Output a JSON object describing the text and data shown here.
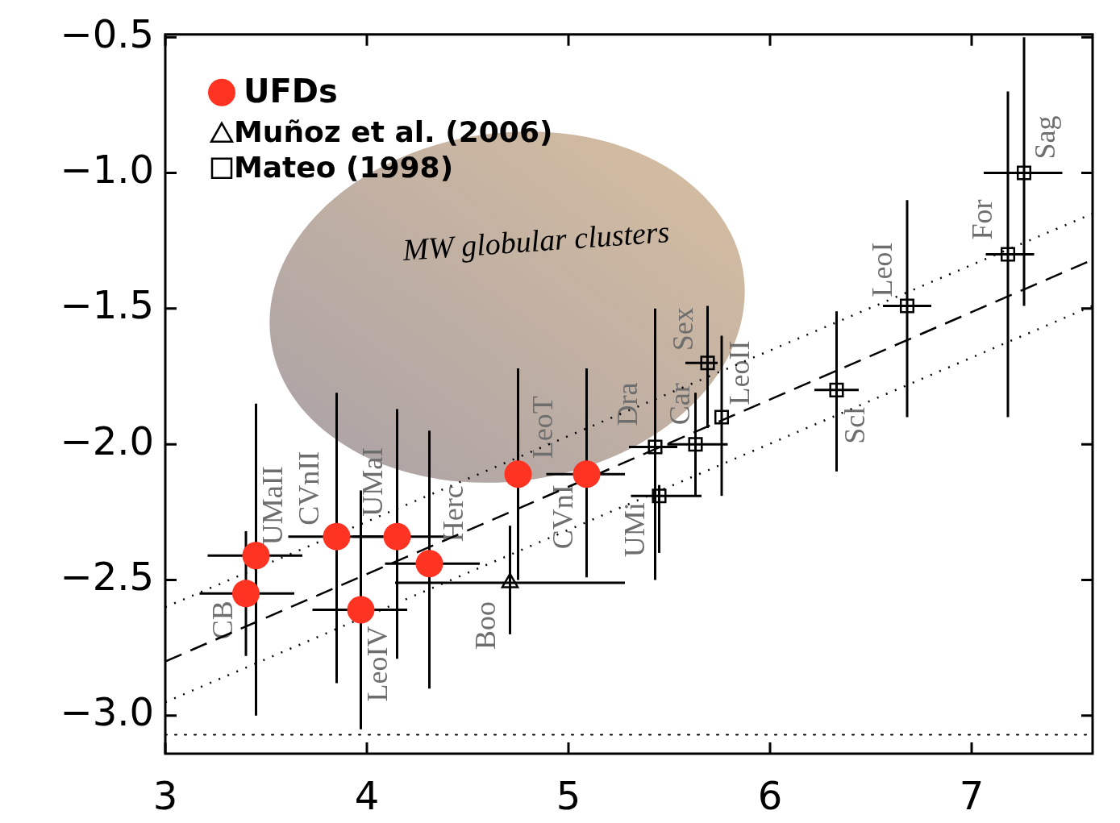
{
  "chart_data": {
    "type": "scatter",
    "xlim": [
      3,
      7.6
    ],
    "ylim": [
      -3.14,
      -0.49
    ],
    "xticks": [
      3,
      4,
      5,
      6,
      7
    ],
    "yticks": [
      {
        "value": -3.0,
        "label": "−3.0"
      },
      {
        "value": -2.5,
        "label": "−2.5"
      },
      {
        "value": -2.0,
        "label": "−2.0"
      },
      {
        "value": -1.5,
        "label": "−1.5"
      },
      {
        "value": -1.0,
        "label": "−1.0"
      },
      {
        "value": -0.5,
        "label": "−0.5"
      }
    ],
    "grid": false,
    "legend": "top left",
    "series": [
      {
        "name": "UFDs",
        "color": "#ff3322",
        "marker": "circle",
        "x": [
          3.4,
          3.45,
          3.85,
          3.97,
          4.15,
          4.31,
          4.75,
          5.09
        ],
        "values": [
          -2.55,
          -2.41,
          -2.34,
          -2.61,
          -2.34,
          -2.44,
          -2.11,
          -2.11
        ],
        "errors": [
          [
            -2.78,
            -2.32
          ],
          [
            -3.0,
            -1.85
          ],
          [
            -2.88,
            -1.81
          ],
          [
            -3.05,
            -2.17
          ],
          [
            -2.79,
            -1.87
          ],
          [
            -2.9,
            -1.95
          ],
          [
            -2.5,
            -1.72
          ],
          [
            -2.49,
            -1.72
          ]
        ],
        "xerrors": [
          [
            3.17,
            3.64
          ],
          [
            3.21,
            3.68
          ],
          [
            3.61,
            4.08
          ],
          [
            3.73,
            4.2
          ],
          [
            3.93,
            4.39
          ],
          [
            4.09,
            4.56
          ],
          null,
          [
            4.89,
            5.28
          ]
        ]
      },
      {
        "name": "Muñoz et al. (2006)",
        "color": "#000000",
        "marker": "triangle",
        "x": [
          4.71
        ],
        "values": [
          -2.51
        ],
        "errors": [
          [
            -2.7,
            -2.3
          ]
        ],
        "xerrors": [
          [
            4.14,
            5.28
          ]
        ]
      },
      {
        "name": "Mateo (1998)",
        "color": "#000000",
        "marker": "square",
        "x": [
          5.43,
          5.45,
          5.63,
          5.69,
          5.76,
          6.33,
          6.68,
          7.18,
          7.26
        ],
        "values": [
          -2.01,
          -2.19,
          -2.0,
          -1.7,
          -1.9,
          -1.8,
          -1.49,
          -1.3,
          -1.0
        ],
        "errors": [
          [
            -2.5,
            -1.5
          ],
          [
            -2.4,
            -2.15
          ],
          [
            -2.19,
            -1.81
          ],
          [
            -1.94,
            -1.49
          ],
          [
            -2.19,
            -1.6
          ],
          [
            -2.1,
            -1.51
          ],
          [
            -1.9,
            -1.1
          ],
          [
            -1.9,
            -0.7
          ],
          [
            -1.49,
            -0.5
          ]
        ],
        "xerrors": [
          [
            5.3,
            5.54
          ],
          [
            5.31,
            5.66
          ],
          [
            5.49,
            5.79
          ],
          [
            5.58,
            5.74
          ],
          null,
          [
            6.22,
            6.44
          ],
          [
            6.56,
            6.8
          ],
          [
            7.07,
            7.31
          ],
          [
            7.06,
            7.45
          ]
        ]
      },
      {
        "type": "line",
        "color": "#000000",
        "line_style": "dashed",
        "marker": "none",
        "x": [
          3,
          7.6
        ],
        "values": [
          -2.8,
          -1.32
        ]
      },
      {
        "type": "line",
        "color": "#000000",
        "line_style": "dotted",
        "marker": "none",
        "x": [
          3,
          7.6
        ],
        "values": [
          -2.6,
          -1.15
        ]
      },
      {
        "type": "line",
        "color": "#000000",
        "line_style": "dotted",
        "marker": "none",
        "x": [
          3,
          7.6
        ],
        "values": [
          -2.95,
          -1.49
        ]
      }
    ],
    "ref_lines": [
      {
        "axis": "y",
        "value": -3.07,
        "line_style": "dotted",
        "color": "#000000"
      }
    ],
    "annotations": [
      "MW globular clusters",
      {
        "text": "CB",
        "x": 3.4,
        "y": -2.55
      },
      {
        "text": "UMaII",
        "x": 3.45,
        "y": -2.41
      },
      {
        "text": "CVnII",
        "x": 3.85,
        "y": -2.34
      },
      {
        "text": "UMaI",
        "x": 4.15,
        "y": -2.34
      },
      {
        "text": "Herc",
        "x": 4.31,
        "y": -2.44
      },
      {
        "text": "LeoIV",
        "x": 3.97,
        "y": -2.61
      },
      {
        "text": "Boo",
        "x": 4.71,
        "y": -2.51
      },
      {
        "text": "LeoT",
        "x": 4.75,
        "y": -2.11
      },
      {
        "text": "CVnI",
        "x": 5.09,
        "y": -2.11
      },
      {
        "text": "UMi",
        "x": 5.45,
        "y": -2.19
      },
      {
        "text": "Dra",
        "x": 5.43,
        "y": -2.01
      },
      {
        "text": "Car",
        "x": 5.63,
        "y": -2.0
      },
      {
        "text": "Sex",
        "x": 5.69,
        "y": -1.7
      },
      {
        "text": "LeoII",
        "x": 5.76,
        "y": -1.9
      },
      {
        "text": "Scl",
        "x": 6.33,
        "y": -1.8
      },
      {
        "text": "LeoI",
        "x": 6.68,
        "y": -1.49
      },
      {
        "text": "For",
        "x": 7.18,
        "y": -1.3
      },
      {
        "text": "Sag",
        "x": 7.26,
        "y": -1.0
      }
    ]
  }
}
